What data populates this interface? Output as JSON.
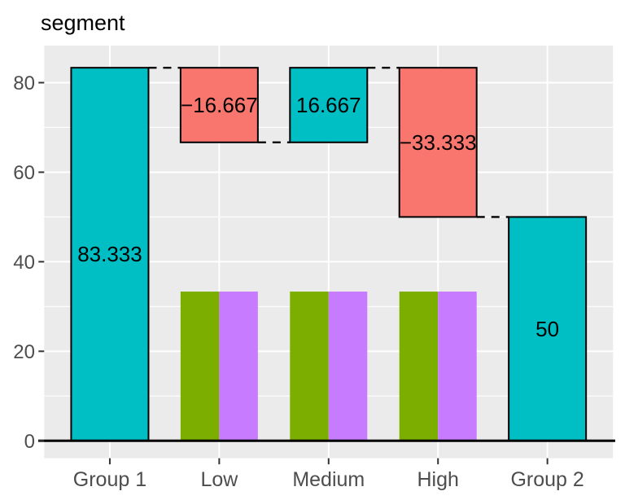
{
  "chart_data": {
    "type": "waterfall",
    "title": "segment",
    "categories": [
      "Group 1",
      "Low",
      "Medium",
      "High",
      "Group 2"
    ],
    "waterfall_bars": [
      {
        "category": "Group 1",
        "from": 0,
        "to": 83.333,
        "label": "83.333",
        "role": "total"
      },
      {
        "category": "Low",
        "from": 83.333,
        "to": 66.667,
        "label": "−16.667",
        "role": "decrease"
      },
      {
        "category": "Medium",
        "from": 66.667,
        "to": 83.333,
        "label": "16.667",
        "role": "increase"
      },
      {
        "category": "High",
        "from": 83.333,
        "to": 50,
        "label": "−33.333",
        "role": "decrease"
      },
      {
        "category": "Group 2",
        "from": 0,
        "to": 50,
        "label": "50",
        "role": "total"
      }
    ],
    "dodged_bars": {
      "categories": [
        "Low",
        "Medium",
        "High"
      ],
      "series": [
        {
          "name": "green",
          "value": 33.333
        },
        {
          "name": "purple",
          "value": 33.333
        }
      ]
    },
    "connectors": [
      {
        "from_category": "Group 1",
        "to_category": "Low",
        "at": 83.333
      },
      {
        "from_category": "Low",
        "to_category": "Medium",
        "at": 66.667
      },
      {
        "from_category": "Medium",
        "to_category": "High",
        "at": 83.333
      },
      {
        "from_category": "High",
        "to_category": "Group 2",
        "at": 50
      }
    ],
    "y_axis": {
      "major_ticks": [
        0,
        20,
        40,
        60,
        80
      ],
      "minor_ticks": [
        10,
        30,
        50,
        70
      ],
      "ylim": [
        -4.2,
        87.5
      ]
    },
    "x_axis": {
      "tick_labels": [
        "Group 1",
        "Low",
        "Medium",
        "High",
        "Group 2"
      ]
    },
    "legend": "none",
    "grid": "on",
    "colors": {
      "increase": "#00BFC4",
      "total": "#00BFC4",
      "decrease": "#F8766D",
      "green": "#7CAE00",
      "purple": "#C77CFF",
      "panel_background": "#EBEBEB",
      "gridline": "#FFFFFF",
      "bar_outline": "#000000",
      "connector": "#000000",
      "axis_line": "#000000",
      "tick_mark": "#333333",
      "axis_text": "#4D4D4D",
      "value_label": "#000000",
      "title_text": "#000000"
    }
  }
}
